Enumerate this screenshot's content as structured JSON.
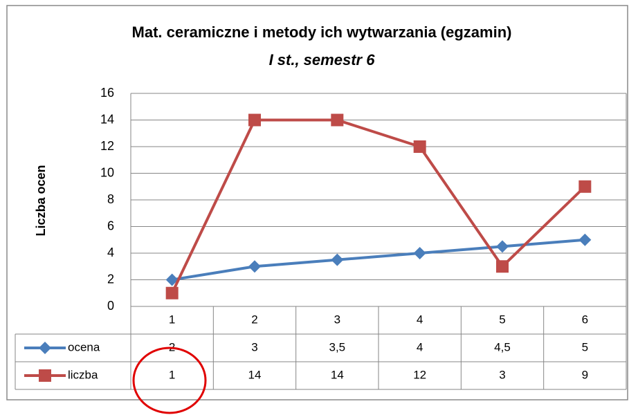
{
  "chart_data": {
    "type": "line",
    "title": "Mat. ceramiczne i metody ich wytwarzania (egzamin)",
    "subtitle": "I st., semestr  6",
    "y_label": "Liczba ocen",
    "categories": [
      "1",
      "2",
      "3",
      "4",
      "5",
      "6"
    ],
    "series": [
      {
        "name": "ocena",
        "color": "#4a7ebb",
        "marker": "diamond",
        "values": [
          2,
          3,
          3.5,
          4,
          4.5,
          5
        ],
        "value_labels": [
          "2",
          "3",
          "3,5",
          "4",
          "4,5",
          "5"
        ]
      },
      {
        "name": "liczba",
        "color": "#be4b48",
        "marker": "square",
        "values": [
          1,
          14,
          14,
          12,
          3,
          9
        ]
      }
    ],
    "ylim": [
      0,
      16
    ],
    "yticks": [
      0,
      2,
      4,
      6,
      8,
      10,
      12,
      14,
      16
    ],
    "grid": true,
    "data_table": true
  }
}
